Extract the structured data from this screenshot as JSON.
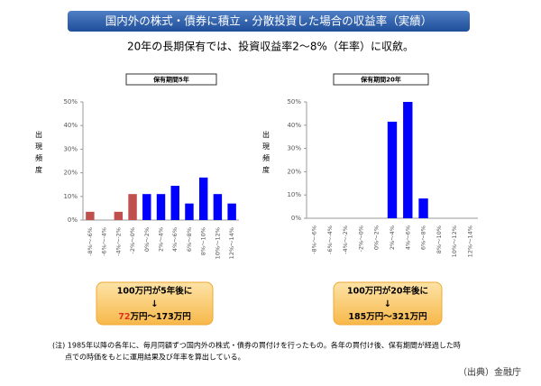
{
  "header": {
    "title": "国内外の株式・債券に積立・分散投資した場合の収益率（実績）",
    "subtitle": "20年の長期保有では、投資収益率2～8%（年率）に収斂。"
  },
  "chart_data": [
    {
      "type": "bar",
      "title": "保有期間5年",
      "y_label": "出現頻度",
      "categories": [
        "-8%～-6%",
        "-6%～-4%",
        "-4%～-2%",
        "-2%～0%",
        "0%～2%",
        "2%～4%",
        "4%～6%",
        "6%～8%",
        "8%～10%",
        "10%～12%",
        "12%～14%"
      ],
      "values": [
        3.5,
        0,
        3.5,
        11,
        11,
        11,
        14.5,
        7,
        18,
        11,
        7
      ],
      "colors": [
        "#c0504d",
        "#c0504d",
        "#c0504d",
        "#c0504d",
        "#0000ff",
        "#0000ff",
        "#0000ff",
        "#0000ff",
        "#0000ff",
        "#0000ff",
        "#0000ff"
      ],
      "ylim": [
        0,
        50
      ],
      "yticks": [
        {
          "value": 0,
          "label": "0%"
        },
        {
          "value": 10,
          "label": "10%"
        },
        {
          "value": 20,
          "label": "20%"
        },
        {
          "value": 30,
          "label": "30%"
        },
        {
          "value": 40,
          "label": "40%"
        },
        {
          "value": 50,
          "label": "50%"
        }
      ]
    },
    {
      "type": "bar",
      "title": "保有期間20年",
      "y_label": "出現頻度",
      "categories": [
        "-8%～-6%",
        "-6%～-4%",
        "-4%～-2%",
        "-2%～0%",
        "0%～2%",
        "2%～4%",
        "4%～6%",
        "6%～8%",
        "8%～10%",
        "10%～12%",
        "12%～14%"
      ],
      "values": [
        0,
        0,
        0,
        0,
        0,
        41.5,
        50,
        8.5,
        0,
        0,
        0
      ],
      "colors": [
        "#0000ff",
        "#0000ff",
        "#0000ff",
        "#0000ff",
        "#0000ff",
        "#0000ff",
        "#0000ff",
        "#0000ff",
        "#0000ff",
        "#0000ff",
        "#0000ff"
      ],
      "ylim": [
        0,
        50
      ],
      "yticks": [
        {
          "value": 0,
          "label": "0%"
        },
        {
          "value": 10,
          "label": "10%"
        },
        {
          "value": 20,
          "label": "20%"
        },
        {
          "value": 30,
          "label": "30%"
        },
        {
          "value": 40,
          "label": "40%"
        },
        {
          "value": 50,
          "label": "50%"
        }
      ]
    }
  ],
  "callouts": [
    {
      "line1": "100万円が5年後に",
      "arrow": "↓",
      "low": "72",
      "rest": "万円～173万円"
    },
    {
      "line1": "100万円が20年後に",
      "arrow": "↓",
      "low": "185",
      "rest": "万円～321万円"
    }
  ],
  "note": [
    "(注) 1985年以降の各年に、毎月同額ずつ国内外の株式・債券の買付けを行ったもの。各年の買付け後、保有期間が経過した時",
    "点での時価をもとに運用結果及び年率を算出している。"
  ],
  "source": "（出典）金融庁"
}
